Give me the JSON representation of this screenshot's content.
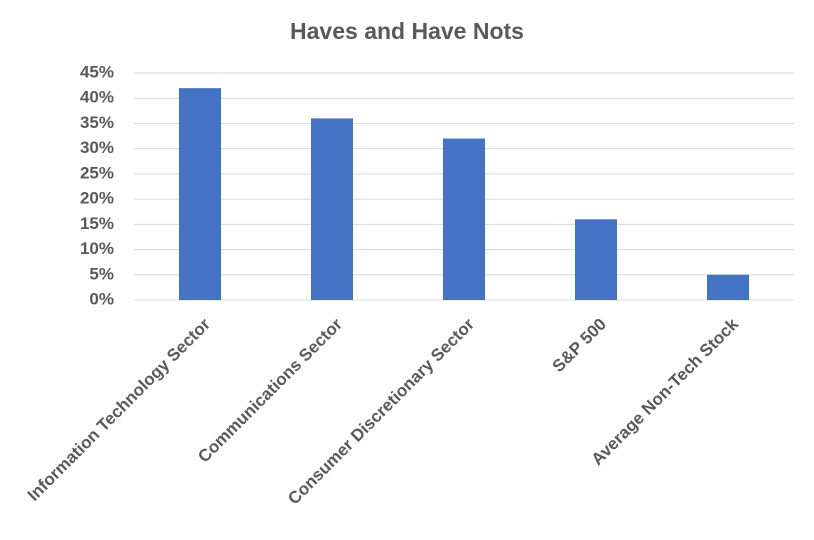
{
  "chart_data": {
    "type": "bar",
    "title": "Haves and Have Nots",
    "categories": [
      "Information Technology Sector",
      "Communications Sector",
      "Consumer Discretionary Sector",
      "S&P 500",
      "Average Non-Tech Stock"
    ],
    "values": [
      42,
      36,
      32,
      16,
      5
    ],
    "color": "#4472c4",
    "ylim": [
      0,
      45
    ],
    "yticks": [
      {
        "value": 0,
        "label": "0%"
      },
      {
        "value": 5,
        "label": "5%"
      },
      {
        "value": 10,
        "label": "10%"
      },
      {
        "value": 15,
        "label": "15%"
      },
      {
        "value": 20,
        "label": "20%"
      },
      {
        "value": 25,
        "label": "25%"
      },
      {
        "value": 30,
        "label": "30%"
      },
      {
        "value": 35,
        "label": "35%"
      },
      {
        "value": 40,
        "label": "40%"
      },
      {
        "value": 45,
        "label": "45%"
      }
    ],
    "grid": true
  }
}
